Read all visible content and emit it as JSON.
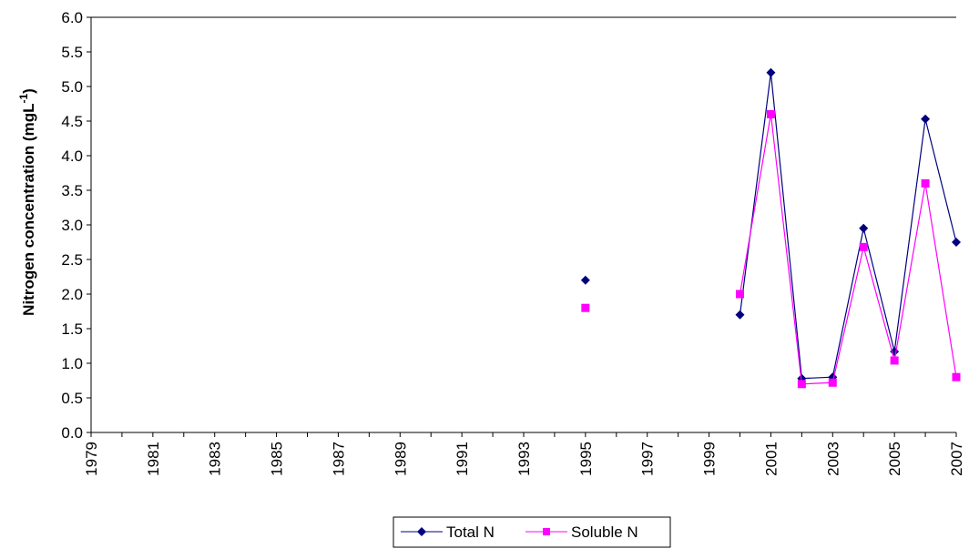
{
  "chart_data": {
    "type": "line",
    "title": "",
    "xlabel": "",
    "ylabel": "Nitrogen concentration (mgL",
    "ylabel_superscript": "-1",
    "ylabel_suffix": ")",
    "xlim": [
      1979,
      2007
    ],
    "ylim": [
      0,
      6
    ],
    "y_ticks": [
      "0.0",
      "0.5",
      "1.0",
      "1.5",
      "2.0",
      "2.5",
      "3.0",
      "3.5",
      "4.0",
      "4.5",
      "5.0",
      "5.5",
      "6.0"
    ],
    "x_ticks": [
      "1979",
      "1981",
      "1983",
      "1985",
      "1987",
      "1989",
      "1991",
      "1993",
      "1995",
      "1997",
      "1999",
      "2001",
      "2003",
      "2005",
      "2007"
    ],
    "grid": false,
    "legend_position": "bottom",
    "series": [
      {
        "name": "Total N",
        "color": "#000080",
        "marker": "diamond",
        "points": [
          {
            "x": 1995,
            "y": 2.2
          },
          {
            "x": 2000,
            "y": 1.7
          },
          {
            "x": 2001,
            "y": 5.2
          },
          {
            "x": 2002,
            "y": 0.78
          },
          {
            "x": 2003,
            "y": 0.8
          },
          {
            "x": 2004,
            "y": 2.95
          },
          {
            "x": 2005,
            "y": 1.17
          },
          {
            "x": 2006,
            "y": 4.53
          },
          {
            "x": 2007,
            "y": 2.75
          }
        ]
      },
      {
        "name": "Soluble N",
        "color": "#FF00FF",
        "marker": "square",
        "points": [
          {
            "x": 1995,
            "y": 1.8
          },
          {
            "x": 2000,
            "y": 2.0
          },
          {
            "x": 2001,
            "y": 4.6
          },
          {
            "x": 2002,
            "y": 0.7
          },
          {
            "x": 2003,
            "y": 0.72
          },
          {
            "x": 2004,
            "y": 2.68
          },
          {
            "x": 2005,
            "y": 1.04
          },
          {
            "x": 2006,
            "y": 3.6
          },
          {
            "x": 2007,
            "y": 0.8
          }
        ]
      }
    ]
  }
}
